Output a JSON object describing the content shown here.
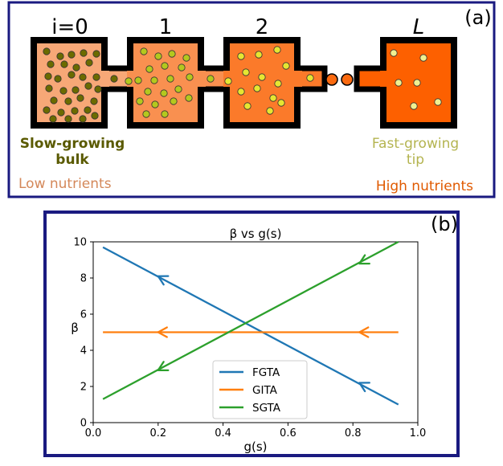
{
  "panel_a": {
    "label": "(a)",
    "boxes": [
      {
        "index_label": "i=0",
        "fill": "#f7a877",
        "dot_color": "#6b6b00"
      },
      {
        "index_label": "1",
        "fill": "#f99050",
        "dot_color": "#b4c81e"
      },
      {
        "index_label": "2",
        "fill": "#fb7a2a",
        "dot_color": "#e6e632"
      },
      {
        "index_label": "L",
        "fill": "#fd6000",
        "dot_color": "#f0f090"
      }
    ],
    "bulk_label_line1": "Slow-growing",
    "bulk_label_line2": "bulk",
    "tip_label_line1": "Fast-growing",
    "tip_label_line2": "tip",
    "low_nutrients": "Low nutrients",
    "high_nutrients": "High nutrients",
    "colors": {
      "frame": "#1a1a80",
      "bulk_text": "#5a5a00",
      "tip_text": "#b4b450",
      "low_text": "#d4885a",
      "high_text": "#e05a00",
      "ellipsis_dot": "#fb6a10"
    }
  },
  "panel_b": {
    "label": "(b)",
    "chart_data": {
      "type": "line",
      "title": "β vs g(s)",
      "xlabel": "g(s)",
      "ylabel": "β",
      "xlim": [
        0.0,
        1.0
      ],
      "ylim": [
        0,
        10
      ],
      "xticks": [
        "0.0",
        "0.2",
        "0.4",
        "0.6",
        "0.8",
        "1.0"
      ],
      "yticks": [
        "0",
        "2",
        "4",
        "6",
        "8",
        "10"
      ],
      "legend_position": "lower-center",
      "grid": false,
      "series": [
        {
          "name": "FGTA",
          "color": "#1f77b4",
          "x": [
            0.03,
            0.94
          ],
          "y": [
            9.7,
            1.0
          ],
          "arrows": [
            {
              "x": 0.2,
              "y": 8.1
            },
            {
              "x": 0.82,
              "y": 2.2
            }
          ]
        },
        {
          "name": "GITA",
          "color": "#ff7f0e",
          "x": [
            0.03,
            0.94
          ],
          "y": [
            5.0,
            5.0
          ],
          "arrows": [
            {
              "x": 0.2,
              "y": 5.0
            },
            {
              "x": 0.82,
              "y": 5.0
            }
          ]
        },
        {
          "name": "SGTA",
          "color": "#2ca02c",
          "x": [
            0.03,
            0.94
          ],
          "y": [
            1.3,
            10.0
          ],
          "arrows": [
            {
              "x": 0.2,
              "y": 2.9
            },
            {
              "x": 0.82,
              "y": 8.8
            }
          ]
        }
      ]
    }
  }
}
